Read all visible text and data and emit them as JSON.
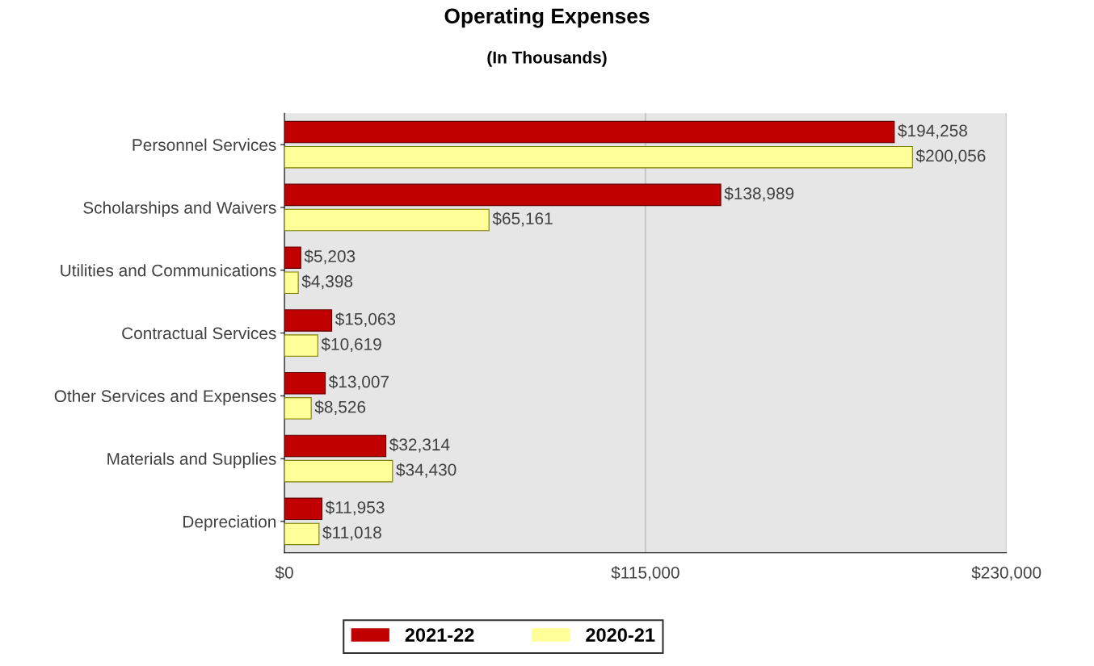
{
  "chart_data": {
    "type": "bar",
    "orientation": "horizontal",
    "title": "Operating Expenses",
    "subtitle": "(In Thousands)",
    "categories": [
      "Personnel Services",
      "Scholarships and Waivers",
      "Utilities and Communications",
      "Contractual Services",
      "Other Services and Expenses",
      "Materials and Supplies",
      "Depreciation"
    ],
    "series": [
      {
        "name": "2021-22",
        "color": "#c00000",
        "values": [
          194258,
          138989,
          5203,
          15063,
          13007,
          32314,
          11953
        ],
        "value_labels": [
          "$194,258",
          "$138,989",
          "$5,203",
          "$15,063",
          "$13,007",
          "$32,314",
          "$11,953"
        ]
      },
      {
        "name": "2020-21",
        "color": "#ffff99",
        "values": [
          200056,
          65161,
          4398,
          10619,
          8526,
          34430,
          11018
        ],
        "value_labels": [
          "$200,056",
          "$65,161",
          "$4,398",
          "$10,619",
          "$8,526",
          "$34,430",
          "$11,018"
        ]
      }
    ],
    "xlim": [
      0,
      230000
    ],
    "xticks": [
      {
        "value": 0,
        "label": "$0"
      },
      {
        "value": 115000,
        "label": "$115,000"
      },
      {
        "value": 230000,
        "label": "$230,000"
      }
    ],
    "grid": "x",
    "legend": "bottom"
  }
}
